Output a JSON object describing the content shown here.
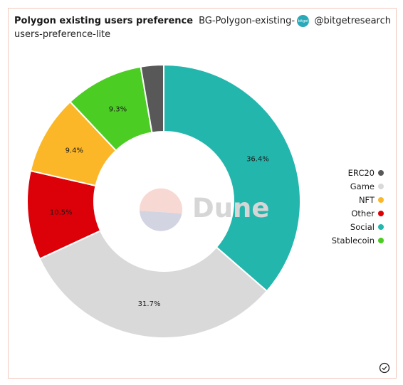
{
  "header": {
    "title": "Polygon existing users preference",
    "subtitle": "BG-Polygon-existing-users-preference-lite",
    "author": "@bitgetresearch",
    "avatar_icon": "bitget-avatar-icon"
  },
  "watermark": {
    "text": "Dune"
  },
  "footer": {
    "icon": "verified-check-icon"
  },
  "chart_data": {
    "type": "pie",
    "donut": true,
    "legend_position": "right",
    "slices": [
      {
        "name": "Social",
        "value": 36.4,
        "label": "36.4%",
        "color": "#23b6ad",
        "show_label": true
      },
      {
        "name": "Game",
        "value": 31.7,
        "label": "31.7%",
        "color": "#d9d9d9",
        "show_label": true
      },
      {
        "name": "Other",
        "value": 10.5,
        "label": "10.5%",
        "color": "#dc0008",
        "show_label": true
      },
      {
        "name": "NFT",
        "value": 9.4,
        "label": "9.4%",
        "color": "#fbb728",
        "show_label": true
      },
      {
        "name": "Stablecoin",
        "value": 9.3,
        "label": "9.3%",
        "color": "#4ccd24",
        "show_label": true
      },
      {
        "name": "ERC20",
        "value": 2.7,
        "label": "2.7%",
        "color": "#585858",
        "show_label": false
      }
    ],
    "legend": [
      {
        "name": "ERC20",
        "color": "#585858"
      },
      {
        "name": "Game",
        "color": "#d9d9d9"
      },
      {
        "name": "NFT",
        "color": "#fbb728"
      },
      {
        "name": "Other",
        "color": "#dc0008"
      },
      {
        "name": "Social",
        "color": "#23b6ad"
      },
      {
        "name": "Stablecoin",
        "color": "#4ccd24"
      }
    ]
  }
}
